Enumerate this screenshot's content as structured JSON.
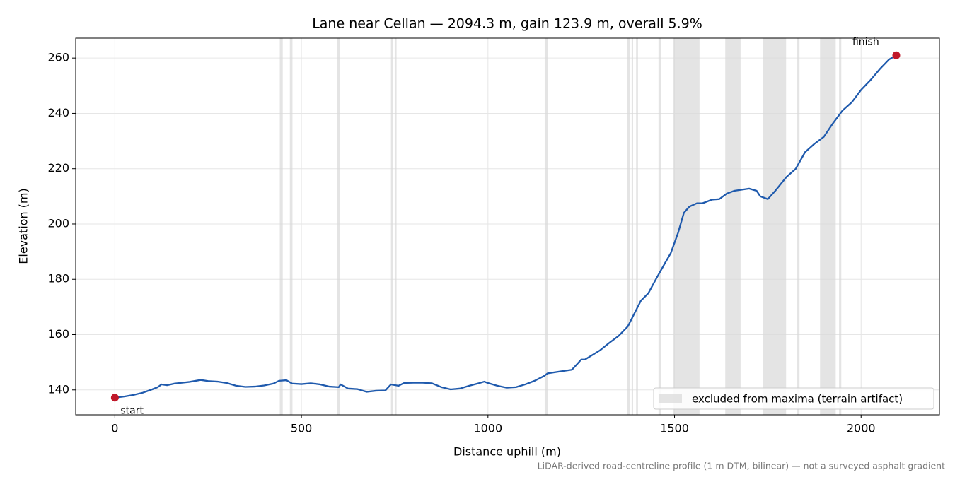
{
  "chart_data": {
    "type": "line",
    "title": "Lane near Cellan — 2094.3 m, gain 123.9 m, overall 5.9%",
    "x_label": "Distance uphill (m)",
    "y_label": "Elevation (m)",
    "footnote": "LiDAR-derived road-centreline profile (1 m DTM, bilinear) — not a surveyed asphalt gradient",
    "xlim": [
      -105,
      2210
    ],
    "ylim": [
      131,
      267.2
    ],
    "xticks": [
      0,
      500,
      1000,
      1500,
      2000
    ],
    "yticks": [
      140,
      160,
      180,
      200,
      220,
      240,
      260
    ],
    "grid": true,
    "x": [
      0,
      25,
      50,
      75,
      100,
      115,
      125,
      140,
      160,
      200,
      230,
      250,
      275,
      300,
      325,
      350,
      375,
      400,
      425,
      440,
      460,
      475,
      500,
      525,
      550,
      575,
      600,
      605,
      625,
      650,
      675,
      700,
      725,
      740,
      760,
      775,
      800,
      825,
      850,
      875,
      900,
      925,
      950,
      975,
      990,
      1000,
      1025,
      1050,
      1075,
      1100,
      1125,
      1150,
      1160,
      1200,
      1225,
      1240,
      1250,
      1260,
      1300,
      1325,
      1350,
      1375,
      1390,
      1410,
      1430,
      1450,
      1475,
      1490,
      1510,
      1525,
      1540,
      1560,
      1575,
      1600,
      1620,
      1640,
      1660,
      1700,
      1720,
      1730,
      1750,
      1770,
      1800,
      1825,
      1850,
      1875,
      1900,
      1925,
      1950,
      1975,
      2000,
      2025,
      2050,
      2075,
      2094.3
    ],
    "series": [
      {
        "color": "#1f5aad",
        "values": [
          137.2,
          137.6,
          138.2,
          139,
          140.2,
          141,
          142,
          141.7,
          142.3,
          142.9,
          143.6,
          143.2,
          143,
          142.5,
          141.5,
          141.1,
          141.2,
          141.6,
          142.3,
          143.3,
          143.5,
          142.3,
          142.1,
          142.4,
          142,
          141.2,
          141,
          142,
          140.5,
          140.3,
          139.3,
          139.7,
          139.8,
          142,
          141.5,
          142.5,
          142.6,
          142.6,
          142.4,
          141,
          140.2,
          140.5,
          141.5,
          142.4,
          143,
          142.5,
          141.5,
          140.8,
          141,
          142,
          143.3,
          145,
          146,
          146.8,
          147.3,
          149.5,
          151,
          151,
          154.3,
          157,
          159.5,
          163,
          167,
          172.3,
          175,
          180,
          186,
          189.5,
          197,
          204,
          206.3,
          207.5,
          207.5,
          208.8,
          209,
          211,
          212,
          212.8,
          212,
          210,
          209,
          212,
          217,
          220,
          226,
          229,
          231.5,
          236.5,
          241,
          244,
          248.5,
          252,
          256,
          259.5,
          261
        ]
      }
    ],
    "marker_color": "#c0182a",
    "start_label": "start",
    "finish_label": "finish",
    "spans": [
      [
        442,
        450
      ],
      [
        469,
        476
      ],
      [
        596,
        603
      ],
      [
        740,
        746
      ],
      [
        750,
        755
      ],
      [
        1152,
        1161
      ],
      [
        1372,
        1381
      ],
      [
        1385,
        1389
      ],
      [
        1397,
        1402
      ],
      [
        1457,
        1463
      ],
      [
        1497,
        1567
      ],
      [
        1636,
        1677
      ],
      [
        1736,
        1799
      ],
      [
        1829,
        1835
      ],
      [
        1890,
        1932
      ],
      [
        1941,
        1947
      ]
    ],
    "span_color": "#d9d9d9",
    "span_label": "excluded from maxima (terrain artifact)",
    "legend": "lower right"
  }
}
